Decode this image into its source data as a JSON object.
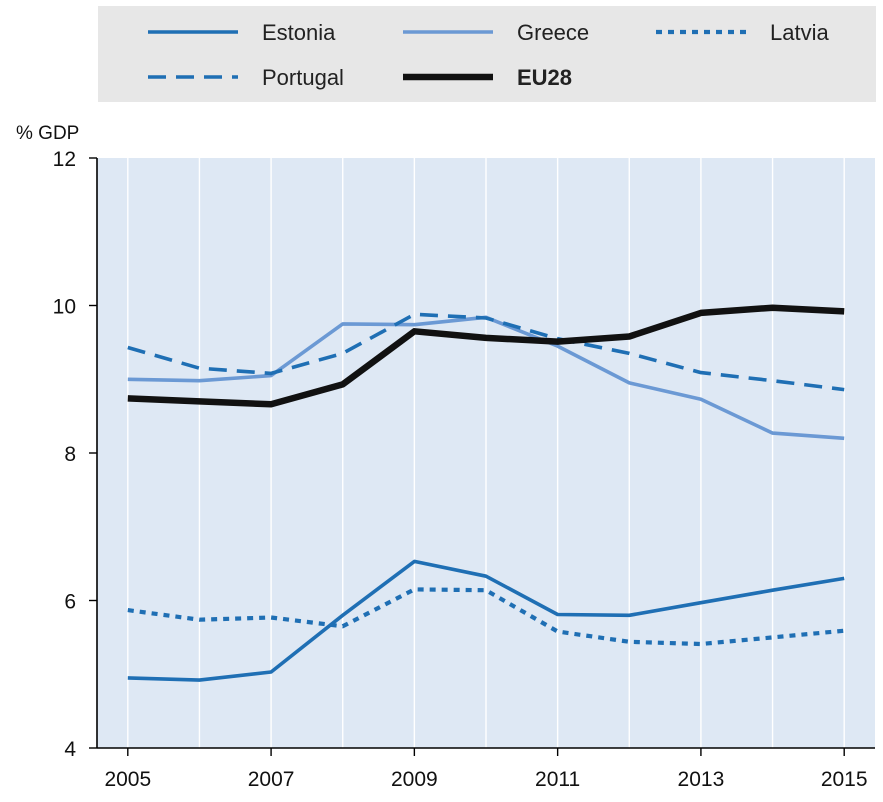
{
  "chart_data": {
    "type": "line",
    "ylabel": "% GDP",
    "xlabel": "",
    "x": [
      2005,
      2006,
      2007,
      2008,
      2009,
      2010,
      2011,
      2012,
      2013,
      2014,
      2015
    ],
    "x_tick_labels": [
      "2005",
      "2007",
      "2009",
      "2011",
      "2013",
      "2015"
    ],
    "y_tick_labels": [
      "4",
      "6",
      "8",
      "10",
      "12"
    ],
    "xlim": [
      2004.57,
      2015.43
    ],
    "ylim": [
      4,
      12
    ],
    "grid": "vertical",
    "legend_position": "top",
    "series": [
      {
        "name": "Estonia",
        "style": "solid",
        "color": "#1f6fb4",
        "values": [
          4.95,
          4.92,
          5.03,
          5.8,
          6.53,
          6.33,
          5.81,
          5.8,
          5.97,
          6.14,
          6.3
        ]
      },
      {
        "name": "Greece",
        "style": "solid",
        "color": "#6b99d4",
        "values": [
          9.0,
          8.98,
          9.05,
          9.75,
          9.74,
          9.84,
          9.45,
          8.95,
          8.73,
          8.27,
          8.2
        ]
      },
      {
        "name": "Latvia",
        "style": "dotted",
        "color": "#1f6fb4",
        "values": [
          5.87,
          5.74,
          5.77,
          5.65,
          6.15,
          6.14,
          5.58,
          5.44,
          5.41,
          5.5,
          5.59
        ]
      },
      {
        "name": "Portugal",
        "style": "dashed",
        "color": "#1f6fb4",
        "values": [
          9.43,
          9.15,
          9.08,
          9.35,
          9.88,
          9.83,
          9.55,
          9.35,
          9.09,
          8.98,
          8.86
        ]
      },
      {
        "name": "EU28",
        "style": "bold",
        "color": "#111111",
        "values": [
          8.74,
          8.7,
          8.66,
          8.93,
          9.65,
          9.56,
          9.51,
          9.58,
          9.9,
          9.97,
          9.92
        ]
      }
    ]
  },
  "colors": {
    "legend_bg": "#e7e7e7",
    "plot_bg": "#dee8f4",
    "grid": "#ffffff",
    "axis": "#000000"
  }
}
